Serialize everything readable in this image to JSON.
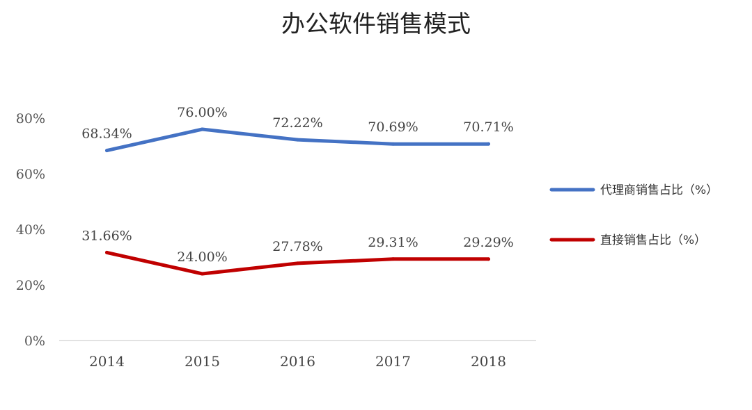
{
  "chart_data": {
    "type": "line",
    "title": "办公软件销售模式",
    "categories": [
      "2014",
      "2015",
      "2016",
      "2017",
      "2018"
    ],
    "y_ticks": [
      "0%",
      "20%",
      "40%",
      "60%",
      "80%"
    ],
    "ylim": [
      0,
      80
    ],
    "grid": false,
    "legend_position": "right",
    "series": [
      {
        "name": "代理商销售占比（%）",
        "color": "#4472C4",
        "values": [
          68.34,
          76.0,
          72.22,
          70.69,
          70.71
        ],
        "labels": [
          "68.34%",
          "76.00%",
          "72.22%",
          "70.69%",
          "70.71%"
        ]
      },
      {
        "name": "直接销售占比（%）",
        "color": "#C00000",
        "values": [
          31.66,
          24.0,
          27.78,
          29.31,
          29.29
        ],
        "labels": [
          "31.66%",
          "24.00%",
          "27.78%",
          "29.31%",
          "29.29%"
        ]
      }
    ]
  }
}
